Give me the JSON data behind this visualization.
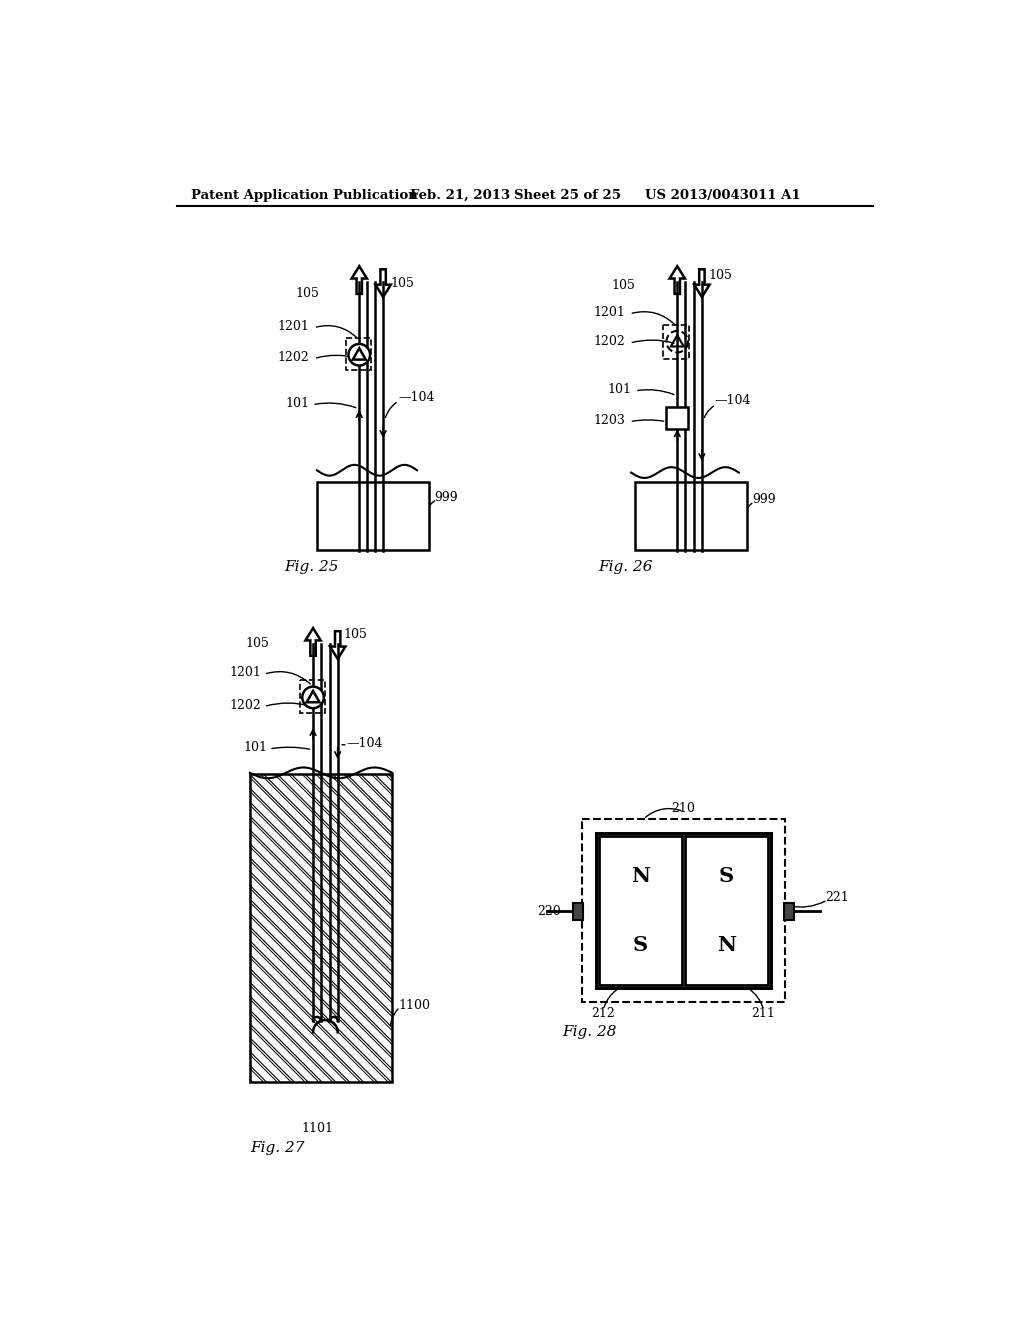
{
  "background_color": "#ffffff",
  "header_text": "Patent Application Publication",
  "header_date": "Feb. 21, 2013",
  "header_sheet": "Sheet 25 of 25",
  "header_patent": "US 2013/0043011 A1",
  "fig25_label": "Fig. 25",
  "fig26_label": "Fig. 26",
  "fig27_label": "Fig. 27",
  "fig28_label": "Fig. 28"
}
